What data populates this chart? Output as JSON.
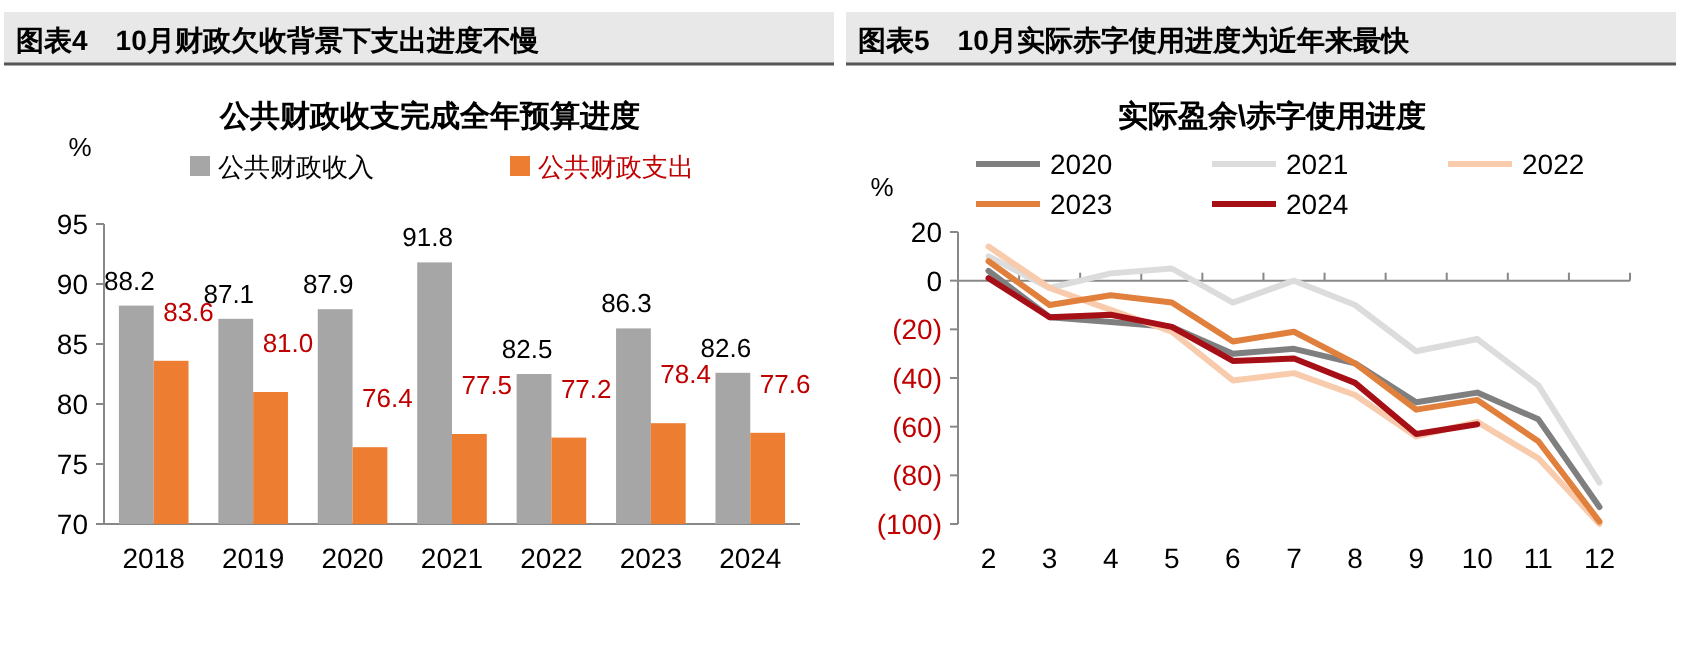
{
  "chart_data": [
    {
      "type": "bar",
      "title": "图表4　10月财政欠收背景下支出进度不慢",
      "subtitle": "公共财政收支完成全年预算进度",
      "ylabel": "%",
      "categories": [
        "2018",
        "2019",
        "2020",
        "2021",
        "2022",
        "2023",
        "2024"
      ],
      "series": [
        {
          "name": "公共财政收入",
          "color": "#a6a6a6",
          "values": [
            88.2,
            87.1,
            87.9,
            91.8,
            82.5,
            86.3,
            82.6
          ]
        },
        {
          "name": "公共财政支出",
          "color": "#ed7d31",
          "values": [
            83.6,
            81.0,
            76.4,
            77.5,
            77.2,
            78.4,
            77.6
          ],
          "value_labels": [
            "83.6",
            "81.0",
            "76.4",
            "77.5",
            "77.2",
            "78.4",
            "77.6"
          ]
        }
      ],
      "ylim": [
        70,
        95
      ],
      "yticks": [
        70,
        75,
        80,
        85,
        90,
        95
      ],
      "data_labels": true,
      "legend": "top",
      "grid": false
    },
    {
      "type": "line",
      "title": "图表5　10月实际赤字使用进度为近年来最快",
      "subtitle": "实际盈余\\赤字使用进度",
      "ylabel": "%",
      "categories": [
        "2",
        "3",
        "4",
        "5",
        "6",
        "7",
        "8",
        "9",
        "10",
        "11",
        "12"
      ],
      "series": [
        {
          "name": "2020",
          "color": "#7f7f7f",
          "values": [
            4,
            -15,
            -17,
            -19,
            -30,
            -28,
            -34,
            -50,
            -46,
            -57,
            -93
          ]
        },
        {
          "name": "2021",
          "color": "#dcdcdc",
          "values": [
            10,
            -3,
            3,
            5,
            -9,
            0,
            -10,
            -29,
            -24,
            -43,
            -83
          ]
        },
        {
          "name": "2022",
          "color": "#f8cbad",
          "values": [
            14,
            -3,
            -12,
            -21,
            -41,
            -38,
            -47,
            -64,
            -58,
            -73,
            -100
          ]
        },
        {
          "name": "2023",
          "color": "#e0803c",
          "values": [
            8,
            -10,
            -6,
            -9,
            -25,
            -21,
            -34,
            -53,
            -49,
            -66,
            -99
          ]
        },
        {
          "name": "2024",
          "color": "#a50f15",
          "values": [
            1,
            -15,
            -14,
            -19,
            -33,
            -32,
            -42,
            -63,
            -59,
            null,
            null
          ]
        }
      ],
      "ylim": [
        -100,
        20
      ],
      "yticks": [
        {
          "value": -100,
          "label": "(100)"
        },
        {
          "value": -80,
          "label": "(80)"
        },
        {
          "value": -60,
          "label": "(60)"
        },
        {
          "value": -40,
          "label": "(40)"
        },
        {
          "value": -20,
          "label": "(20)"
        },
        0,
        20
      ],
      "legend": "top"
    }
  ]
}
